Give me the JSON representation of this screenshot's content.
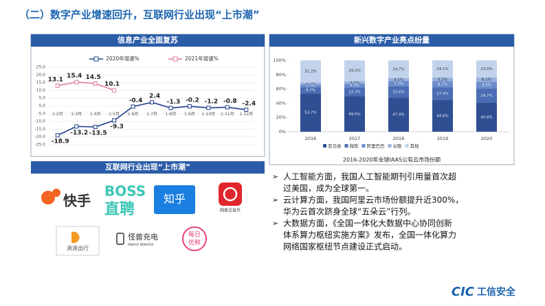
{
  "title": "（二）数字产业增速回升，互联网行业出现“上市潮”",
  "chart_data": [
    {
      "type": "line",
      "title": "信息产业全面复苏",
      "categories": [
        "1-2月",
        "1-3月",
        "1-4月",
        "1-5月",
        "1-6月",
        "1-7月",
        "1-8月",
        "1-9月",
        "1-10月",
        "1-11月",
        "1-12月"
      ],
      "series": [
        {
          "name": "2020年增速%",
          "color": "#1f3f8f",
          "values": [
            -18.9,
            -13.2,
            -13.5,
            -9.3,
            -0.4,
            2.4,
            -1.3,
            -0.2,
            -1.2,
            -0.8,
            -2.4
          ]
        },
        {
          "name": "2021年增速%",
          "color": "#e07a98",
          "values": [
            13.1,
            15.4,
            14.5,
            10.1,
            null,
            null,
            null,
            null,
            null,
            null,
            null
          ]
        }
      ],
      "ylim": [
        -25,
        25
      ],
      "yticks": [
        {
          "value": -25,
          "label": "-25.0"
        },
        {
          "value": -20,
          "label": "-20.0"
        },
        {
          "value": -15,
          "label": "-15.0"
        },
        {
          "value": -10,
          "label": "-10.0"
        },
        {
          "value": -5,
          "label": "-5.0"
        },
        {
          "value": 0,
          "label": "0.0"
        },
        {
          "value": 5,
          "label": "5.0"
        },
        {
          "value": 10,
          "label": "10.0"
        },
        {
          "value": 15,
          "label": "15.0"
        },
        {
          "value": 20,
          "label": "20.0"
        },
        {
          "value": 25,
          "label": "25.0"
        }
      ],
      "grid": true
    },
    {
      "type": "stacked_bar",
      "title": "新兴数字产业亮点纷量",
      "caption": "2016-2020年全球IAAS公有云市场份额",
      "categories": [
        "2016",
        "2017",
        "2018",
        "2019",
        "2020"
      ],
      "series": [
        {
          "name": "亚马逊",
          "color": "#2f4f93",
          "values": [
            53.7,
            49.5,
            47.9,
            44.6,
            40.8
          ],
          "value_labels": [
            "53.7%",
            "49.5%",
            "47.9%",
            "44.6%",
            "40.8%"
          ]
        },
        {
          "name": "微软",
          "color": "#4a6db3",
          "values": [
            8.7,
            12.7,
            15.6,
            17.4,
            19.7
          ],
          "value_labels": [
            "8.7%",
            "12.7%",
            "15.6%",
            "17.4%",
            "19.7%"
          ]
        },
        {
          "name": "阿里巴巴",
          "color": "#6b8ccb",
          "values": [
            3.7,
            5.3,
            7.7,
            8.7,
            9.5
          ],
          "value_labels": [
            "3.7%",
            "5.3%",
            "7.7%",
            "8.7%",
            "9.5%"
          ]
        },
        {
          "name": "谷歌",
          "color": "#97b0dc",
          "values": [
            2.7,
            3.3,
            4.1,
            5.2,
            6.1
          ],
          "value_labels": [
            "2.7%",
            "3.3%",
            "4.1%",
            "5.2%",
            "6.1%"
          ]
        },
        {
          "name": "其他",
          "color": "#c3d2ec",
          "values": [
            31.2,
            29.2,
            24.7,
            24.1,
            23.9
          ],
          "value_labels": [
            "31.2%",
            "29.2%",
            "24.7%",
            "24.1%",
            "23.9%"
          ]
        }
      ],
      "ylim": [
        0,
        100
      ],
      "yticks": [
        {
          "value": 0,
          "label": "0%"
        },
        {
          "value": 20,
          "label": "20%"
        },
        {
          "value": 40,
          "label": "40%"
        },
        {
          "value": 60,
          "label": "60%"
        },
        {
          "value": 80,
          "label": "80%"
        },
        {
          "value": 100,
          "label": "100%"
        }
      ],
      "legend": "bottom"
    }
  ],
  "listing": {
    "title": "互联网行业出现“上市潮”",
    "logos": [
      "快手",
      "BOSS",
      "直聘",
      "知乎",
      "网易云音乐",
      "滴滴出行",
      "怪兽充电",
      "ENERGY MONSTER",
      "每日",
      "优鲜"
    ]
  },
  "bullets": [
    [
      "人工智能方面，我国人工智能期刊引用量首次超",
      "过美国，成为全球第一。"
    ],
    [
      "云计算方面，我国阿里云市场份额提升近300%，",
      "华为云首次跻身全球“五朵云”行列。"
    ],
    [
      "大数据方面，《全国一体化大数据中心协同创新",
      "体系算力枢纽实施方案》发布，全国一体化算力",
      "网络国家枢纽节点建设正式启动。"
    ]
  ],
  "footer": {
    "brand": "CIC",
    "name": "工信安全"
  }
}
